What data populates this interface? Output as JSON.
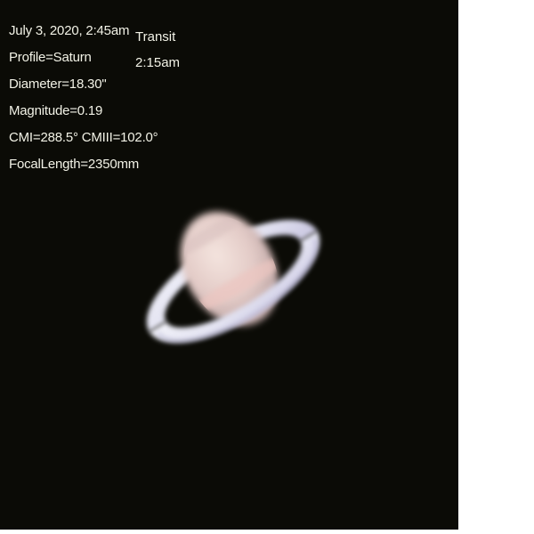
{
  "image": {
    "description_text": {
      "date_time": "July 3, 2020, 2:45am",
      "profile": "Profile=Saturn",
      "diameter": "Diameter=18.30\"",
      "magnitude": "Magnitude=0.19",
      "central_meridians": "CMI=288.5° CMIII=102.0°",
      "focal_length": "FocalLength=2350mm"
    },
    "transit": {
      "label": "Transit",
      "time": "2:15am"
    }
  },
  "colors": {
    "sky": "#0b0b06",
    "text": "#f2f2e6",
    "ring_outer": "#e9e9f4",
    "ring_shadow": "#9a97c0",
    "globe_light": "#f2ded8",
    "globe_dark": "#c9b0ad",
    "band": "#e9c4c0"
  }
}
